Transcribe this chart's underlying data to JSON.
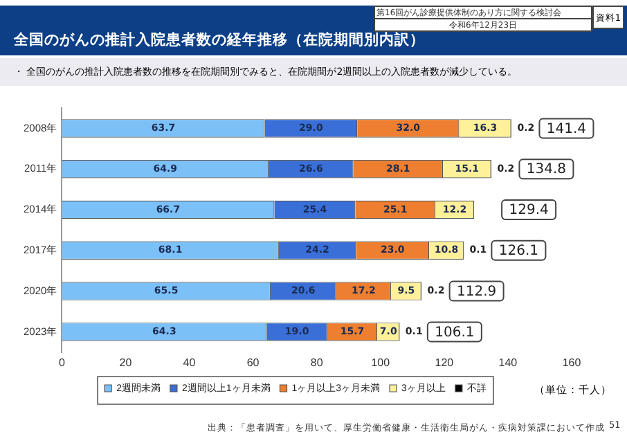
{
  "chart_data": {
    "type": "bar",
    "orientation": "horizontal",
    "stacked": true,
    "title": "全国のがんの推計入院患者数の経年推移（在院期間別内訳）",
    "subtitle": "・ 全国のがんの推計入院患者数の推移を在院期間別でみると、在院期間が2週間以上の入院患者数が減少している。",
    "xlabel": "（単位：千人）",
    "annotations": [
      "第16回がん診療提供体制のあり方に関する検討会",
      "令和6年12月23日",
      "資料1",
      "出典：「患者調査」を用いて、厚生労働省健康・生活衛生局がん・疾病対策課において作成",
      "51"
    ],
    "categories": [
      "2008年",
      "2011年",
      "2014年",
      "2017年",
      "2020年",
      "2023年"
    ],
    "series": [
      {
        "name": "2週間未満",
        "color": "#7cc0f8",
        "values": [
          63.7,
          64.9,
          66.7,
          68.1,
          65.5,
          64.3
        ]
      },
      {
        "name": "2週間以上1ヶ月未満",
        "color": "#3a6fd8",
        "values": [
          29.0,
          26.6,
          25.4,
          24.2,
          20.6,
          19.0
        ],
        "value_labels": [
          "29.0",
          "26.6",
          "25.4",
          "24.2",
          "20.6",
          "19.0"
        ]
      },
      {
        "name": "1ヶ月以上3ヶ月未満",
        "color": "#ee7f30",
        "values": [
          32.0,
          28.1,
          25.1,
          23.0,
          17.2,
          15.7
        ],
        "value_labels": [
          "32.0",
          "28.1",
          "25.1",
          "23.0",
          "17.2",
          "15.7"
        ]
      },
      {
        "name": "3ヶ月以上",
        "color": "#fff09a",
        "values": [
          16.3,
          15.1,
          12.2,
          10.8,
          9.5,
          7.0
        ],
        "value_labels": [
          "16.3",
          "15.1",
          "12.2",
          "10.8",
          "9.5",
          "7.0"
        ]
      },
      {
        "name": "不詳",
        "color": "#000000",
        "values": [
          0.2,
          0.2,
          0,
          0.1,
          0.2,
          0.1
        ],
        "value_labels": [
          "0.2",
          "0.2",
          null,
          "0.1",
          "0.2",
          "0.1"
        ]
      }
    ],
    "data_labels": true,
    "totals": [
      "141.4",
      "134.8",
      "129.4",
      "126.1",
      "112.9",
      "106.1"
    ],
    "xlim": [
      0,
      160
    ],
    "xticks": [
      0,
      20,
      40,
      60,
      80,
      100,
      120,
      140,
      160
    ],
    "grid": false,
    "legend": "bottom"
  }
}
